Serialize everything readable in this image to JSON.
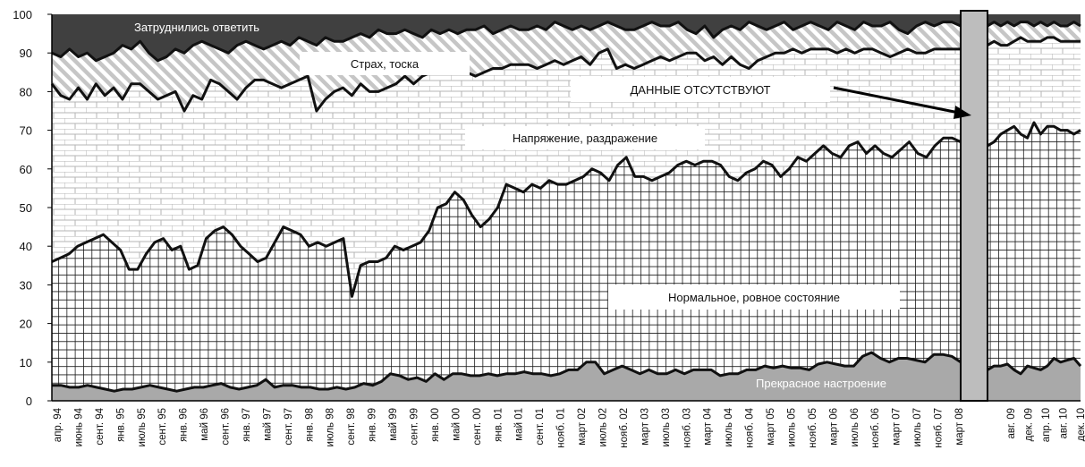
{
  "chart_data": {
    "type": "area",
    "stacked": true,
    "ylim": [
      0,
      100
    ],
    "yticks": [
      0,
      10,
      20,
      30,
      40,
      50,
      60,
      70,
      80,
      90,
      100
    ],
    "grid": false,
    "x_labels": [
      "апр. 94",
      "июнь 94",
      "сент. 94",
      "янв. 95",
      "июль 95",
      "сент. 95",
      "янв. 96",
      "май 96",
      "сент. 96",
      "янв. 97",
      "май 97",
      "сент. 97",
      "янв. 98",
      "июль 98",
      "сент. 98",
      "янв. 99",
      "май 99",
      "сент. 99",
      "янв. 00",
      "май 00",
      "сент. 00",
      "янв. 01",
      "май 01",
      "сент. 01",
      "нояб. 01",
      "март 02",
      "июль 02",
      "нояб. 02",
      "март 03",
      "июль 03",
      "нояб. 03",
      "март 04",
      "июль 04",
      "нояб. 04",
      "март 05",
      "июль 05",
      "нояб. 05",
      "март 06",
      "июль 06",
      "нояб. 06",
      "март 07",
      "июль 07",
      "нояб. 07",
      "март 08",
      "авг. 09",
      "дек. 09",
      "апр. 10",
      "авг. 10",
      "дек. 10"
    ],
    "gap_label_after": "март 08",
    "series": [
      {
        "name": "Прекрасное настроение",
        "segments": [
          [
            4,
            4,
            3.5,
            3.5,
            4,
            3.5,
            3,
            2.5,
            3,
            3,
            3.5,
            4,
            3.5,
            3,
            2.5,
            3,
            3.5,
            3.5,
            4,
            4.5,
            3.5,
            3,
            3.5,
            4,
            5.5,
            3.5,
            4,
            4,
            3.5,
            3.5,
            3,
            3,
            3.5,
            3,
            3.5,
            4.5,
            4,
            5,
            7,
            6.5,
            5.5,
            6,
            5,
            7,
            5.5,
            7,
            7,
            6.5,
            6.5,
            7,
            6.5,
            7,
            7,
            7.5,
            7,
            7,
            6.5,
            7,
            8,
            8,
            10,
            10,
            7,
            8,
            9,
            8,
            7,
            8,
            7,
            7,
            8,
            7,
            8,
            8,
            8,
            6.5,
            7,
            7,
            8,
            8,
            9,
            8.5,
            9,
            8.5,
            8.5,
            8,
            9.5,
            10,
            9.5,
            9,
            9,
            11.5,
            12.5,
            11,
            10,
            11,
            11,
            10.5,
            10,
            12,
            12,
            11.5,
            10
          ],
          [
            8,
            9,
            9,
            9.5,
            8,
            7,
            9,
            8.5,
            8,
            9,
            11,
            10,
            10.5,
            11,
            9
          ]
        ]
      },
      {
        "name": "Нормальное, ровное состояние",
        "segments": [
          [
            36,
            37,
            38,
            40,
            41,
            42,
            43,
            41,
            39,
            34,
            34,
            38,
            41,
            42,
            39,
            40,
            34,
            35,
            42,
            44,
            45,
            43,
            40,
            38,
            36,
            37,
            41,
            45,
            44,
            43,
            40,
            41,
            40,
            41,
            42,
            27,
            35,
            36,
            36,
            37,
            40,
            39,
            40,
            41,
            44,
            50,
            51,
            54,
            52,
            48,
            45,
            47,
            50,
            56,
            55,
            54,
            56,
            55,
            57,
            56,
            56,
            57,
            58,
            60,
            59,
            57,
            61,
            63,
            58,
            58,
            57,
            58,
            59,
            61,
            62,
            61,
            62,
            62,
            61,
            58,
            57,
            59,
            60,
            62,
            61,
            58,
            60,
            63,
            62,
            64,
            66,
            64,
            63,
            66,
            67,
            64,
            66,
            64,
            63,
            65,
            67,
            64,
            63,
            66,
            68,
            68,
            67
          ],
          [
            66,
            67,
            69,
            70,
            71,
            69,
            68,
            72,
            69,
            71,
            71,
            70,
            70,
            69,
            70
          ]
        ]
      },
      {
        "name": "Напряжение, раздражение",
        "segments": [
          [
            82,
            79,
            78,
            81,
            78,
            82,
            79,
            81,
            78,
            82,
            82,
            80,
            78,
            79,
            80,
            75,
            79,
            78,
            83,
            82,
            80,
            78,
            81,
            83,
            83,
            82,
            81,
            82,
            83,
            84,
            75,
            78,
            80,
            81,
            79,
            82,
            80,
            80,
            81,
            82,
            84,
            82,
            84,
            85,
            85,
            86,
            87,
            85,
            84,
            85,
            86,
            86,
            87,
            87,
            87,
            86,
            87,
            88,
            87,
            88,
            89,
            87,
            90,
            91,
            86,
            87,
            86,
            87,
            88,
            89,
            88,
            89,
            90,
            90,
            88,
            89,
            87,
            89,
            87,
            86,
            88,
            89,
            90,
            90,
            91,
            90,
            91,
            91,
            91,
            90,
            91,
            90,
            91,
            91,
            90,
            89,
            90,
            91,
            90,
            90,
            91,
            91,
            91,
            91
          ],
          [
            92,
            93,
            92,
            92,
            93,
            94,
            93,
            93,
            93,
            94,
            94,
            93,
            93,
            93,
            93
          ]
        ]
      },
      {
        "name": "Страх, тоска",
        "segments": [
          [
            90,
            89,
            91,
            89,
            90,
            88,
            89,
            90,
            92,
            91,
            93,
            90,
            88,
            89,
            91,
            90,
            92,
            93,
            92,
            91,
            90,
            92,
            93,
            92,
            91,
            92,
            93,
            92,
            94,
            93,
            92,
            94,
            93,
            93,
            94,
            95,
            94,
            96,
            95,
            95,
            96,
            95,
            94,
            96,
            95,
            96,
            95,
            96,
            96,
            97,
            95,
            96,
            97,
            96,
            96,
            97,
            96,
            98,
            97,
            96,
            97,
            96,
            97,
            98,
            97,
            96,
            96,
            97,
            98,
            97,
            97,
            98,
            96,
            95,
            97,
            94,
            96,
            97,
            96,
            98,
            97,
            96,
            97,
            98,
            96,
            97,
            98,
            97,
            96,
            98,
            97,
            96,
            98,
            97,
            97,
            98,
            96,
            95,
            97,
            98,
            97,
            98,
            98,
            97
          ],
          [
            97,
            98,
            97,
            98,
            97,
            98,
            98,
            97,
            98,
            97,
            98,
            97,
            97,
            98,
            97
          ]
        ]
      },
      {
        "name": "Затруднились ответить",
        "segments": [
          [
            100
          ],
          [
            100
          ]
        ]
      }
    ],
    "annotations": [
      "ДАННЫЕ  ОТСУТСТВУЮТ"
    ]
  }
}
